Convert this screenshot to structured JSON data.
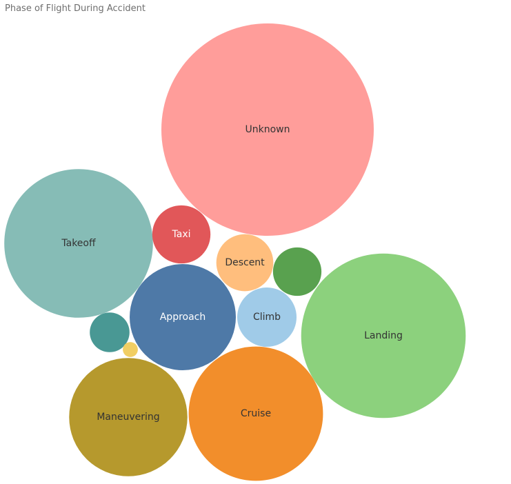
{
  "title": "Phase of Flight During Accident",
  "chart_data": {
    "type": "packed-bubble",
    "title": "Phase of Flight During Accident",
    "bubbles": [
      {
        "label": "Unknown",
        "value": 100,
        "color": "#ff9d9a",
        "text_color": "#333333"
      },
      {
        "label": "Landing",
        "value": 60,
        "color": "#8cd17d",
        "text_color": "#333333"
      },
      {
        "label": "Takeoff",
        "value": 49,
        "color": "#86bcb6",
        "text_color": "#333333"
      },
      {
        "label": "Cruise",
        "value": 40,
        "color": "#f28e2b",
        "text_color": "#333333"
      },
      {
        "label": "Maneuvering",
        "value": 31,
        "color": "#b6992d",
        "text_color": "#333333"
      },
      {
        "label": "Approach",
        "value": 25,
        "color": "#4e79a7",
        "text_color": "#ffffff"
      },
      {
        "label": "Taxi",
        "value": 7.5,
        "color": "#e15759",
        "text_color": "#ffffff"
      },
      {
        "label": "Climb",
        "value": 7.8,
        "color": "#a0cbe8",
        "text_color": "#333333"
      },
      {
        "label": "Descent",
        "value": 7.2,
        "color": "#ffbe7d",
        "text_color": "#333333"
      },
      {
        "label": "",
        "value": 5.2,
        "color": "#59a14f",
        "text_color": "#333333"
      },
      {
        "label": "",
        "value": 3.5,
        "color": "#499894",
        "text_color": "#333333"
      },
      {
        "label": "",
        "value": 0.5,
        "color": "#f1ce63",
        "text_color": "#333333"
      }
    ]
  }
}
